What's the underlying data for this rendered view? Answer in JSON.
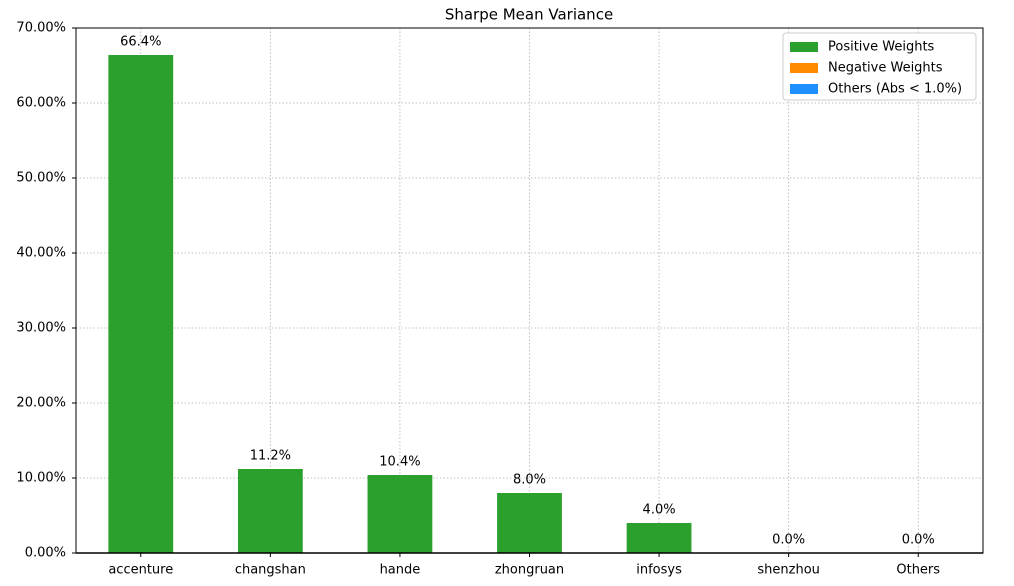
{
  "chart_data": {
    "type": "bar",
    "title": "Sharpe Mean Variance",
    "categories": [
      "accenture",
      "changshan",
      "hande",
      "zhongruan",
      "infosys",
      "shenzhou",
      "Others"
    ],
    "series": [
      {
        "name": "Positive Weights",
        "color": "#2ca02c",
        "values": [
          66.4,
          11.2,
          10.4,
          8.0,
          4.0,
          0.0,
          null
        ],
        "value_labels": [
          "66.4%",
          "11.2%",
          "10.4%",
          "8.0%",
          "4.0%",
          "0.0%",
          null
        ]
      },
      {
        "name": "Negative Weights",
        "color": "#ff8c00",
        "values": [
          null,
          null,
          null,
          null,
          null,
          null,
          null
        ],
        "value_labels": [
          null,
          null,
          null,
          null,
          null,
          null,
          null
        ]
      },
      {
        "name": "Others (Abs < 1.0%)",
        "color": "#1e90ff",
        "values": [
          null,
          null,
          null,
          null,
          null,
          null,
          0.0
        ],
        "value_labels": [
          null,
          null,
          null,
          null,
          null,
          null,
          "0.0%"
        ]
      }
    ],
    "ylim": [
      0,
      70
    ],
    "yticks": [
      {
        "value": 0,
        "label": "0.00%"
      },
      {
        "value": 10,
        "label": "10.00%"
      },
      {
        "value": 20,
        "label": "20.00%"
      },
      {
        "value": 30,
        "label": "30.00%"
      },
      {
        "value": 40,
        "label": "40.00%"
      },
      {
        "value": 50,
        "label": "50.00%"
      },
      {
        "value": 60,
        "label": "60.00%"
      },
      {
        "value": 70,
        "label": "70.00%"
      }
    ],
    "grid": true,
    "legend": "upper right"
  }
}
